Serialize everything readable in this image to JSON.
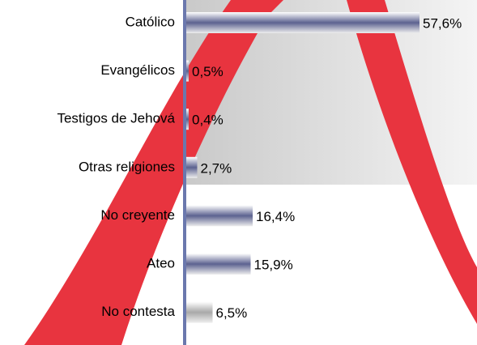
{
  "chart_data": {
    "type": "hbar",
    "categories": [
      "Católico",
      "Evangélicos",
      "Testigos de Jehová",
      "Otras religiones",
      "No creyente",
      "Ateo",
      "No contesta"
    ],
    "values": [
      57.6,
      0.5,
      0.4,
      2.7,
      16.4,
      15.9,
      6.5
    ],
    "value_labels": [
      "57,6%",
      "0,5%",
      "0,4%",
      "2,7%",
      "16,4%",
      "15,9%",
      "6,5%"
    ],
    "colors": [
      "#5c6290",
      "#5c6290",
      "#5c6290",
      "#5c6290",
      "#5c6290",
      "#5c6290",
      "#a8a8a8"
    ],
    "xlim": [
      0,
      60
    ]
  }
}
